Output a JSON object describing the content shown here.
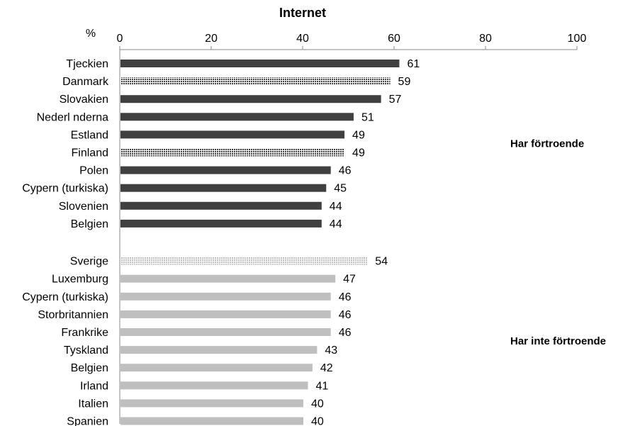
{
  "chart_data": {
    "type": "bar",
    "orientation": "horizontal",
    "title": "Internet",
    "axis_unit_label": "%",
    "xlim": [
      0,
      100
    ],
    "x_ticks": [
      "0",
      "20",
      "40",
      "60",
      "80",
      "100"
    ],
    "grid": false,
    "colors": {
      "dark": "#404040",
      "light": "#bfbfbf",
      "axis": "#888888"
    },
    "groups": [
      {
        "name": "Har förtroende",
        "color": "#404040",
        "bars": [
          {
            "label": "Tjeckien",
            "value": 61,
            "pattern": "solid"
          },
          {
            "label": "Danmark",
            "value": 59,
            "pattern": "hatched"
          },
          {
            "label": "Slovakien",
            "value": 57,
            "pattern": "solid"
          },
          {
            "label": "Nederl nderna",
            "value": 51,
            "pattern": "solid"
          },
          {
            "label": "Estland",
            "value": 49,
            "pattern": "solid"
          },
          {
            "label": "Finland",
            "value": 49,
            "pattern": "hatched"
          },
          {
            "label": "Polen",
            "value": 46,
            "pattern": "solid"
          },
          {
            "label": "Cypern (turkiska)",
            "value": 45,
            "pattern": "solid"
          },
          {
            "label": "Slovenien",
            "value": 44,
            "pattern": "solid"
          },
          {
            "label": "Belgien",
            "value": 44,
            "pattern": "solid"
          }
        ]
      },
      {
        "name": "Har inte förtroende",
        "color": "#bfbfbf",
        "bars": [
          {
            "label": "Sverige",
            "value": 54,
            "pattern": "hatched"
          },
          {
            "label": "Luxemburg",
            "value": 47,
            "pattern": "solid"
          },
          {
            "label": "Cypern (turkiska)",
            "value": 46,
            "pattern": "solid"
          },
          {
            "label": "Storbritannien",
            "value": 46,
            "pattern": "solid"
          },
          {
            "label": "Frankrike",
            "value": 46,
            "pattern": "solid"
          },
          {
            "label": "Tyskland",
            "value": 43,
            "pattern": "solid"
          },
          {
            "label": "Belgien",
            "value": 42,
            "pattern": "solid"
          },
          {
            "label": "Irland",
            "value": 41,
            "pattern": "solid"
          },
          {
            "label": "Italien",
            "value": 40,
            "pattern": "solid"
          },
          {
            "label": "Spanien",
            "value": 40,
            "pattern": "solid"
          }
        ]
      }
    ]
  }
}
